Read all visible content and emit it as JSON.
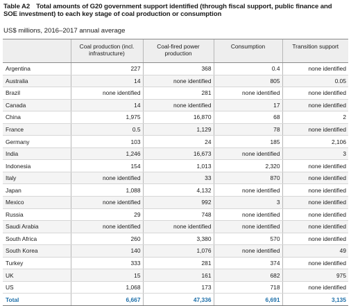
{
  "header": {
    "label": "Table A2",
    "title": "Total amounts of G20 government support identified (through fiscal support, public finance and SOE investment) to each key stage of coal production or consumption",
    "subtitle": "US$ millions, 2016–2017 annual average"
  },
  "table": {
    "columns": [
      "",
      "Coal production (incl. infrastructure)",
      "Coal-fired power production",
      "Consumption",
      "Transition support"
    ],
    "rows": [
      [
        "Argentina",
        "227",
        "368",
        "0.4",
        "none identified"
      ],
      [
        "Australia",
        "14",
        "none identified",
        "805",
        "0.05"
      ],
      [
        "Brazil",
        "none identified",
        "281",
        "none identified",
        "none identified"
      ],
      [
        "Canada",
        "14",
        "none identified",
        "17",
        "none identified"
      ],
      [
        "China",
        "1,975",
        "16,870",
        "68",
        "2"
      ],
      [
        "France",
        "0.5",
        "1,129",
        "78",
        "none identified"
      ],
      [
        "Germany",
        "103",
        "24",
        "185",
        "2,106"
      ],
      [
        "India",
        "1,246",
        "16,673",
        "none identified",
        "3"
      ],
      [
        "Indonesia",
        "154",
        "1,013",
        "2,320",
        "none identified"
      ],
      [
        "Italy",
        "none identified",
        "33",
        "870",
        "none identified"
      ],
      [
        "Japan",
        "1,088",
        "4,132",
        "none identified",
        "none identified"
      ],
      [
        "Mexico",
        "none identified",
        "992",
        "3",
        "none identified"
      ],
      [
        "Russia",
        "29",
        "748",
        "none identified",
        "none identified"
      ],
      [
        "Saudi Arabia",
        "none identified",
        "none identified",
        "none identified",
        "none identified"
      ],
      [
        "South Africa",
        "260",
        "3,380",
        "570",
        "none identified"
      ],
      [
        "South Korea",
        "140",
        "1,076",
        "none identified",
        "49"
      ],
      [
        "Turkey",
        "333",
        "281",
        "374",
        "none identified"
      ],
      [
        "UK",
        "15",
        "161",
        "682",
        "975"
      ],
      [
        "US",
        "1,068",
        "173",
        "718",
        "none identified"
      ]
    ],
    "total": [
      "Total",
      "6,667",
      "47,336",
      "6,691",
      "3,135"
    ]
  },
  "colors": {
    "total_text": "#1d6fa9",
    "header_bg": "#eeeeee",
    "alt_row_bg": "#f4f4f4"
  }
}
